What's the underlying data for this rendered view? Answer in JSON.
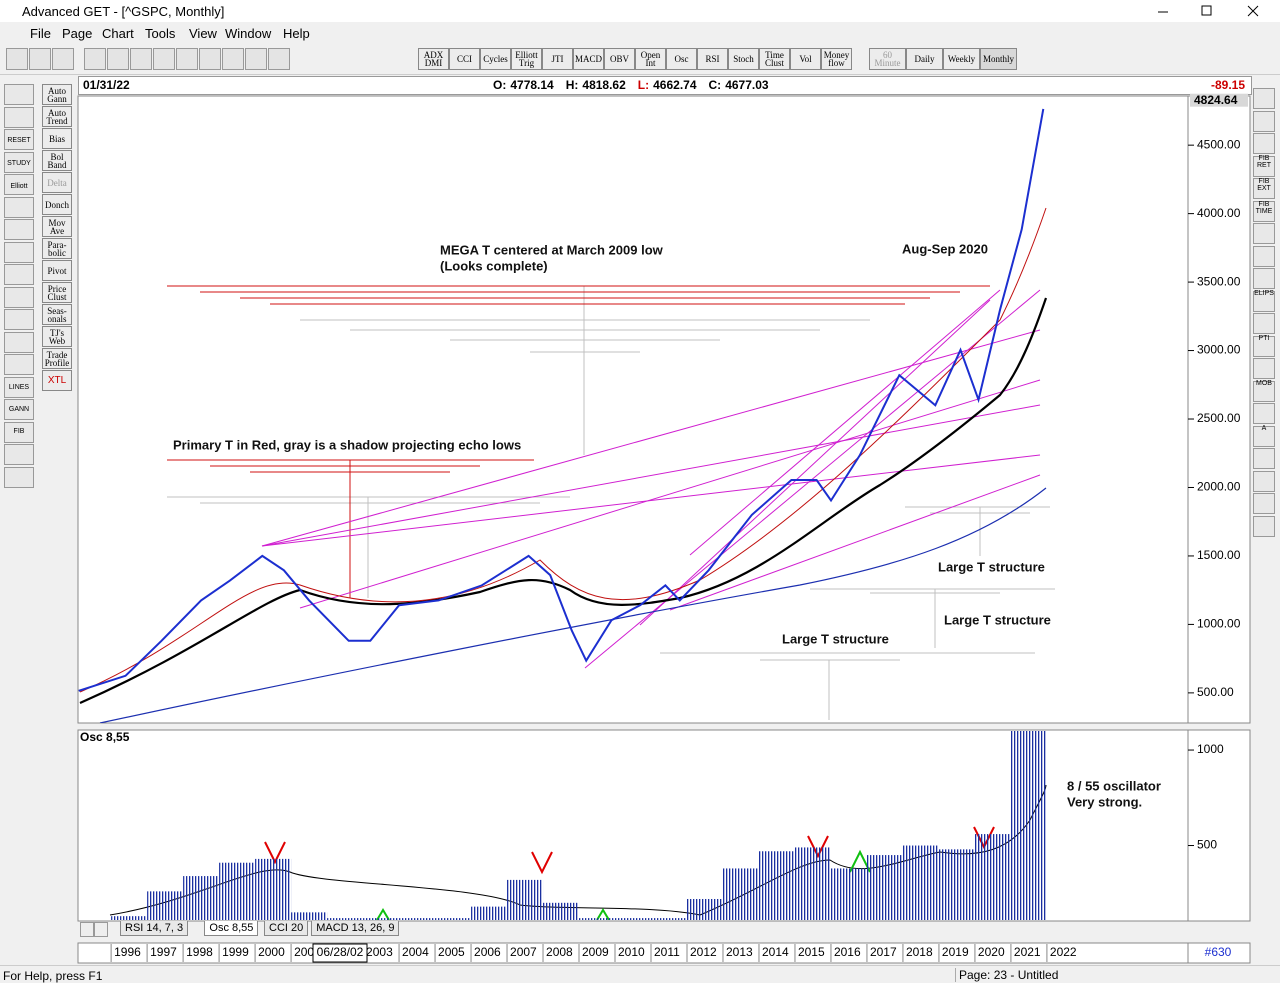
{
  "window": {
    "title": "Advanced GET - [^GSPC, Monthly]"
  },
  "menu": [
    "File",
    "Page",
    "Chart",
    "Tools",
    "View",
    "Window",
    "Help"
  ],
  "indicator_buttons": [
    "ADX DMI",
    "CCI",
    "Cycles",
    "Elliott Trig",
    "JTI",
    "MACD",
    "OBV",
    "Open Int",
    "Osc",
    "RSI",
    "Stoch",
    "Time Clust",
    "Vol",
    "Money flow"
  ],
  "timeframe_buttons": [
    "60 Minute",
    "Daily",
    "Weekly",
    "Monthly"
  ],
  "left_tools": [
    "Auto Gann",
    "Auto Trend",
    "Bias",
    "Bol Band",
    "Delta",
    "Donch",
    "Mov Ave",
    "Para-bolic",
    "Pivot",
    "Price Clust",
    "Seas-onals",
    "TJ's Web",
    "Trade Profile",
    "XTL"
  ],
  "left_icons": [
    "RESET",
    "STUDY",
    "Elliott",
    "LINES",
    "GANN",
    "FIB"
  ],
  "right_icons": [
    "FIB RET",
    "FIB EXT",
    "FIB TIME",
    "ELIPS",
    "PTI",
    "MOB",
    "A"
  ],
  "quote": {
    "date": "01/31/22",
    "fields": [
      {
        "label": "O:",
        "value": 4778.14
      },
      {
        "label": "H:",
        "value": 4818.62
      },
      {
        "label": "L:",
        "value": 4662.74
      },
      {
        "label": "C:",
        "value": 4677.03
      }
    ],
    "change": -89.15
  },
  "chart_data": [
    {
      "type": "line",
      "color": "#1c2fd0",
      "last_price": 4824.64,
      "x": [
        1995.1,
        1996.4,
        1997.4,
        1998.5,
        1999.3,
        2000.2,
        2000.8,
        2001.5,
        2002.6,
        2003.2,
        2004.0,
        2005.1,
        2006.3,
        2007.6,
        2008.2,
        2008.8,
        2009.2,
        2009.9,
        2010.7,
        2011.4,
        2011.8,
        2012.6,
        2013.8,
        2014.9,
        2015.6,
        2016.0,
        2016.8,
        2017.9,
        2018.9,
        2019.6,
        2020.1,
        2020.7,
        2021.3,
        2021.9
      ],
      "values": [
        515,
        625,
        880,
        1175,
        1320,
        1500,
        1395,
        1175,
        880,
        880,
        1140,
        1175,
        1285,
        1500,
        1360,
        955,
        735,
        1030,
        1140,
        1285,
        1175,
        1395,
        1800,
        2055,
        2055,
        1905,
        2235,
        2820,
        2600,
        3005,
        2640,
        3300,
        3885,
        4765
      ],
      "xlim": [
        1995.08,
        2025.92
      ],
      "xticks": [
        1996,
        1997,
        1998,
        1999,
        2000,
        2001,
        2002,
        2003,
        2004,
        2005,
        2006,
        2007,
        2008,
        2009,
        2010,
        2011,
        2012,
        2013,
        2014,
        2015,
        2016,
        2017,
        2018,
        2019,
        2020,
        2021,
        2022
      ],
      "ylim": [
        280,
        4859
      ],
      "yticks": [
        {
          "value": 500,
          "label": "500.00"
        },
        {
          "value": 1000,
          "label": "1000.00"
        },
        {
          "value": 1500,
          "label": "1500.00"
        },
        {
          "value": 2000,
          "label": "2000.00"
        },
        {
          "value": 2500,
          "label": "2500.00"
        },
        {
          "value": 3000,
          "label": "3000.00"
        },
        {
          "value": 3500,
          "label": "3500.00"
        },
        {
          "value": 4000,
          "label": "4000.00"
        },
        {
          "value": 4500,
          "label": "4500.00"
        }
      ],
      "cursor_label": "06/28/02",
      "annotations": [
        "MEGA T centered at March 2009 low",
        "(Looks complete)",
        "Aug-Sep 2020",
        "Primary T in Red, gray is a shadow projecting echo lows",
        "Large T structure",
        "Large T structure",
        "Large T structure"
      ]
    },
    {
      "type": "bar",
      "title": "Osc 8,55",
      "color": "#1a2fa0",
      "x": [
        1996,
        1997,
        1998,
        1999,
        2000,
        2001,
        2002,
        2003,
        2004,
        2005,
        2006,
        2007,
        2008,
        2009,
        2010,
        2011,
        2012,
        2013,
        2014,
        2015,
        2016,
        2017,
        2018,
        2019,
        2020,
        2021
      ],
      "values": [
        130,
        260,
        340,
        410,
        430,
        150,
        120,
        120,
        120,
        120,
        180,
        320,
        200,
        120,
        120,
        120,
        220,
        380,
        470,
        490,
        380,
        450,
        500,
        480,
        560,
        1100
      ],
      "ylim": [
        110,
        1105
      ],
      "yticks": [
        500,
        1000
      ],
      "annotations": [
        "8 / 55 oscillator",
        "Very strong."
      ]
    }
  ],
  "tabs": [
    "RSI 14, 7, 3",
    "Osc 8,55",
    "CCI 20",
    "MACD 13, 26, 9"
  ],
  "status": {
    "help": "For Help, press F1",
    "page": "Page: 23 - Untitled",
    "bar_count": "#630"
  }
}
